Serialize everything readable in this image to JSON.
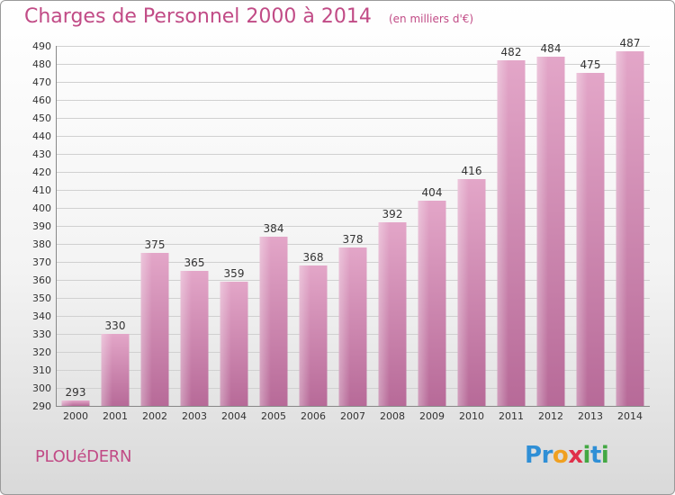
{
  "chart_data": {
    "type": "bar",
    "title": "Charges de Personnel 2000 à 2014",
    "subtitle": "(en milliers d'€)",
    "categories": [
      "2000",
      "2001",
      "2002",
      "2003",
      "2004",
      "2005",
      "2006",
      "2007",
      "2008",
      "2009",
      "2010",
      "2011",
      "2012",
      "2013",
      "2014"
    ],
    "values": [
      293,
      330,
      375,
      365,
      359,
      384,
      368,
      378,
      392,
      404,
      416,
      482,
      484,
      475,
      487
    ],
    "ylim": [
      290,
      490
    ],
    "yticks": [
      290,
      300,
      310,
      320,
      330,
      340,
      350,
      360,
      370,
      380,
      390,
      400,
      410,
      420,
      430,
      440,
      450,
      460,
      470,
      480,
      490
    ],
    "grid": true,
    "bar_color": "#d98bb6"
  },
  "footer": {
    "place": "PLOUéDERN",
    "logo_letters": [
      "P",
      "r",
      "o",
      "x",
      "i",
      "t",
      "i"
    ],
    "logo_colors": [
      "#2f8fd6",
      "#2f8fd6",
      "#f0a020",
      "#e0304a",
      "#43a843",
      "#2f8fd6",
      "#43a843"
    ]
  }
}
